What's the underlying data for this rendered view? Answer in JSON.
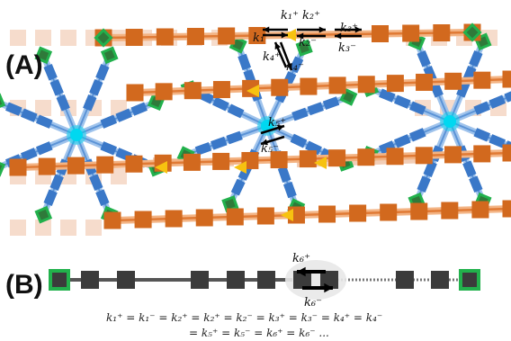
{
  "panels": {
    "a_label": "(A)",
    "b_label": "(B)"
  },
  "rates": {
    "k1p": "k₁⁺",
    "k1m": "k₁⁻",
    "k2p": "k₂⁺",
    "k2m": "k₂⁻",
    "k3p": "k₃⁺",
    "k3m": "k₃⁻",
    "k4p": "k₄⁺",
    "k4m": "k₄⁻",
    "k5p": "k₅⁺",
    "k5m": "k₅⁻",
    "k6p": "k₆⁺",
    "k6m": "k₆⁻"
  },
  "equation": {
    "line1": "k₁⁺ = k₁⁻ = k₂⁺ = k₂⁺ = k₂⁻ = k₃⁺ = k₃⁻ = k₄⁺ = k₄⁻",
    "line2": "= k₅⁺ = k₅⁻ = k₆⁺ = k₆⁻ ..."
  },
  "colors": {
    "orange_monomer": "#d2691e",
    "blue_monomer": "#3a78c8",
    "hub": "#00d8f0",
    "end_cap_fill": "#2f7a3a",
    "end_cap_border": "#22b14c",
    "yellow_junction": "#f7c210",
    "gray_monomer": "#3b3b3b"
  }
}
